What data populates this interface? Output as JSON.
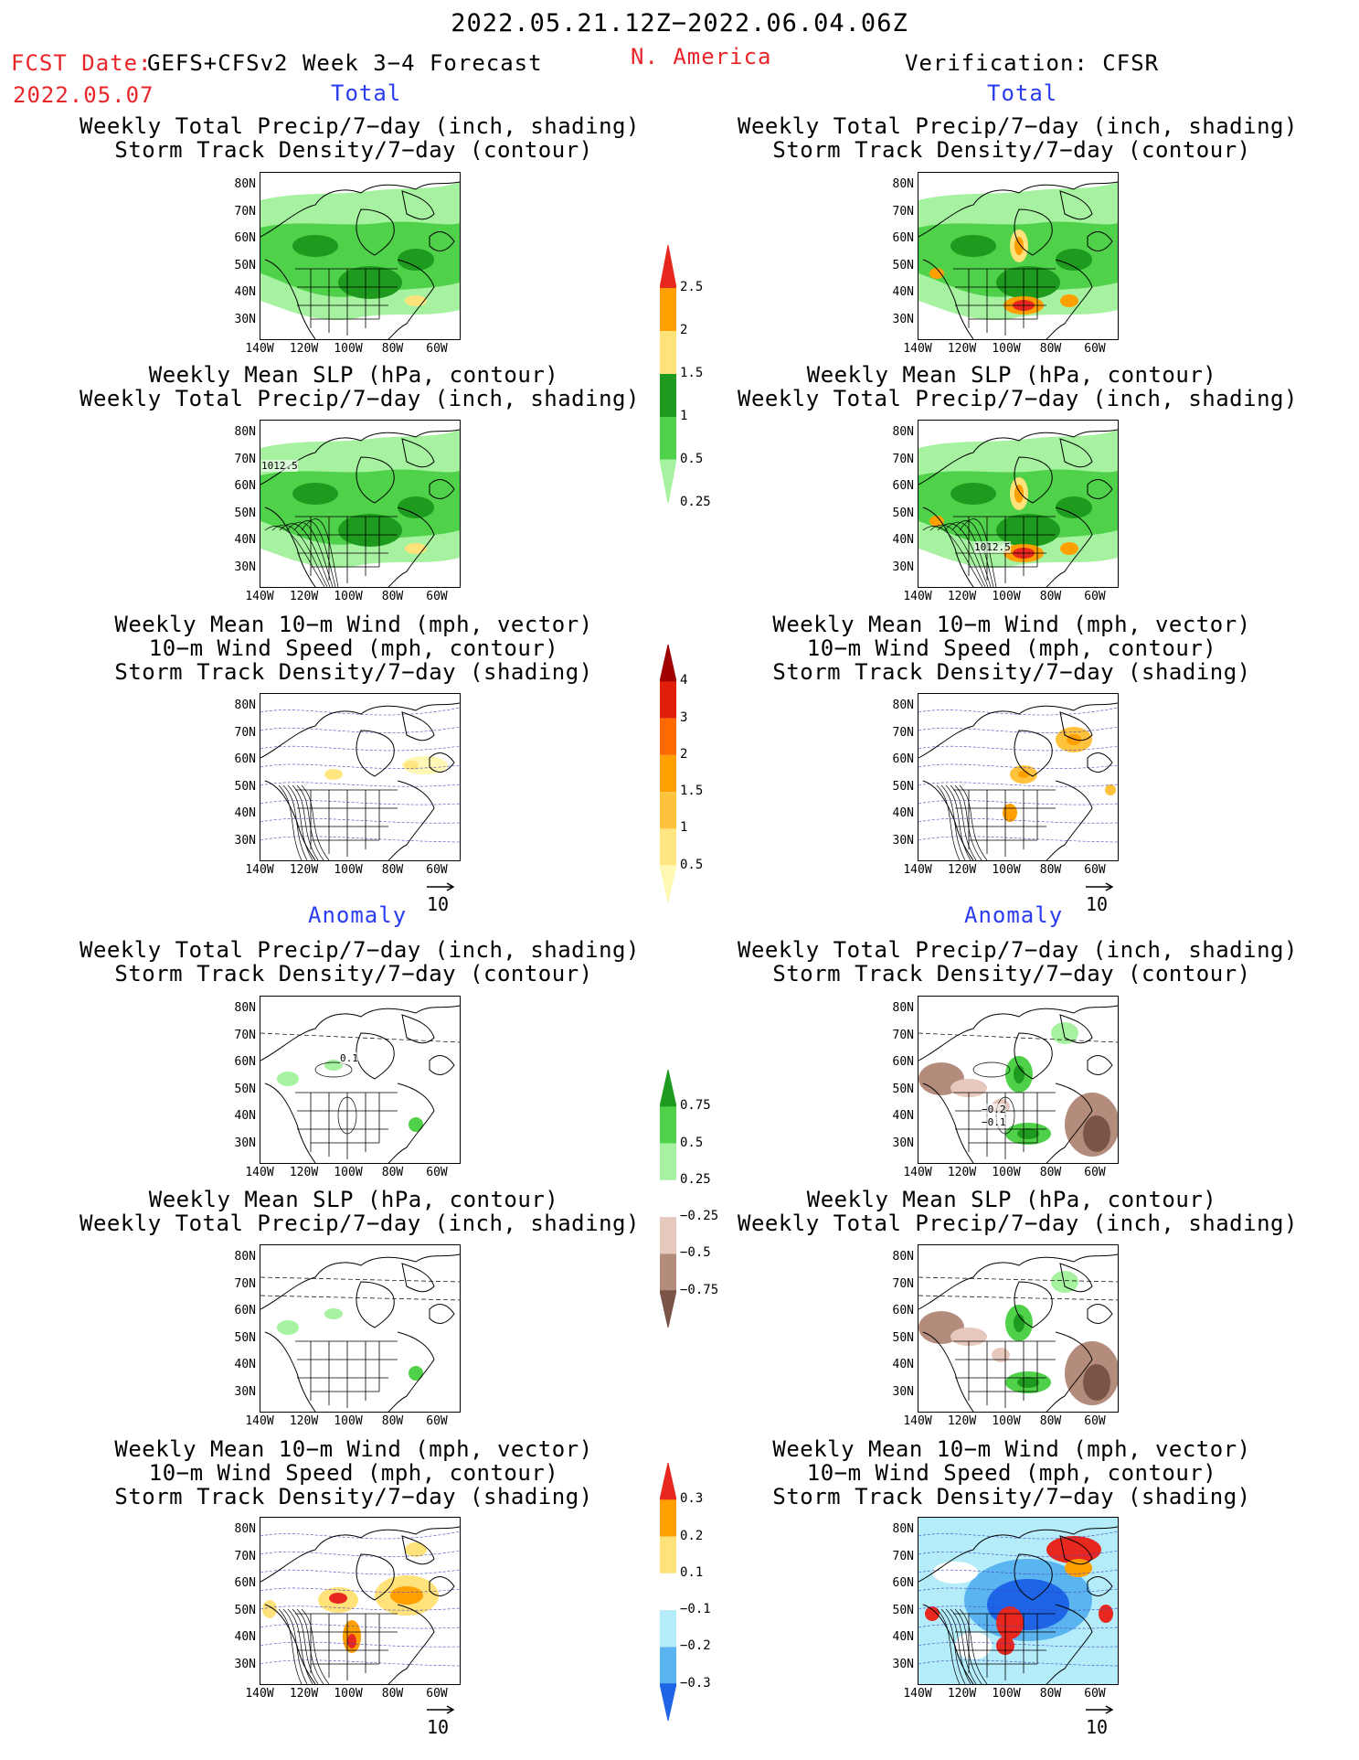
{
  "header": {
    "date_range": "2022.05.21.12Z−2022.06.04.06Z",
    "fcst_label": "FCST Date:",
    "fcst_model": "GEFS+CFSv2 Week 3−4 Forecast",
    "fcst_date": "2022.05.07",
    "region": "N. America",
    "verification": "Verification: CFSR"
  },
  "sections": {
    "total": "Total",
    "anomaly": "Anomaly"
  },
  "panel_titles": {
    "precip_storm": [
      "Weekly Total Precip/7−day (inch, shading)",
      "Storm Track Density/7−day (contour)"
    ],
    "slp_precip": [
      "Weekly Mean SLP (hPa, contour)",
      "Weekly Total Precip/7−day (inch, shading)"
    ],
    "wind": [
      "Weekly Mean 10−m Wind (mph, vector)",
      "10−m Wind Speed (mph, contour)",
      "Storm Track Density/7−day (shading)"
    ]
  },
  "axes": {
    "lat_ticks": [
      "80N",
      "70N",
      "60N",
      "50N",
      "40N",
      "30N"
    ],
    "lon_ticks": [
      "140W",
      "120W",
      "100W",
      "80W",
      "60W"
    ]
  },
  "vector_ref": "10",
  "contour_labels": {
    "slp_fcst": "1012.5",
    "slp_verif": "1012.5",
    "anom_fcst": "0.1",
    "anom_verif_a": "−0.2",
    "anom_verif_b": "−0.1"
  },
  "colorbars": {
    "precip_total": {
      "labels": [
        "2.5",
        "2",
        "1.5",
        "1",
        "0.5",
        "0.25"
      ],
      "colors": [
        "#e8281e",
        "#ffa000",
        "#ffe27a",
        "#1e9a1e",
        "#4fd14a",
        "#a6f2a0"
      ]
    },
    "storm_total": {
      "labels": [
        "4",
        "3",
        "2",
        "1.5",
        "1",
        "0.5"
      ],
      "colors": [
        "#a00000",
        "#e01e0a",
        "#ff6a00",
        "#ffa000",
        "#ffc23c",
        "#ffe680",
        "#fff8b4"
      ]
    },
    "precip_anom": {
      "labels": [
        "0.75",
        "0.5",
        "0.25",
        "−0.25",
        "−0.5",
        "−0.75"
      ],
      "colors": [
        "#1e9a1e",
        "#4fd14a",
        "#a6f2a0",
        "#ffffff",
        "#e6c8bc",
        "#b48c7c",
        "#7a5446"
      ]
    },
    "storm_anom": {
      "labels": [
        "0.3",
        "0.2",
        "0.1",
        "−0.1",
        "−0.2",
        "−0.3"
      ],
      "colors": [
        "#e8281e",
        "#ffa000",
        "#ffe27a",
        "#ffffff",
        "#b4ecfa",
        "#5ab4f0",
        "#1e64e6"
      ]
    }
  }
}
